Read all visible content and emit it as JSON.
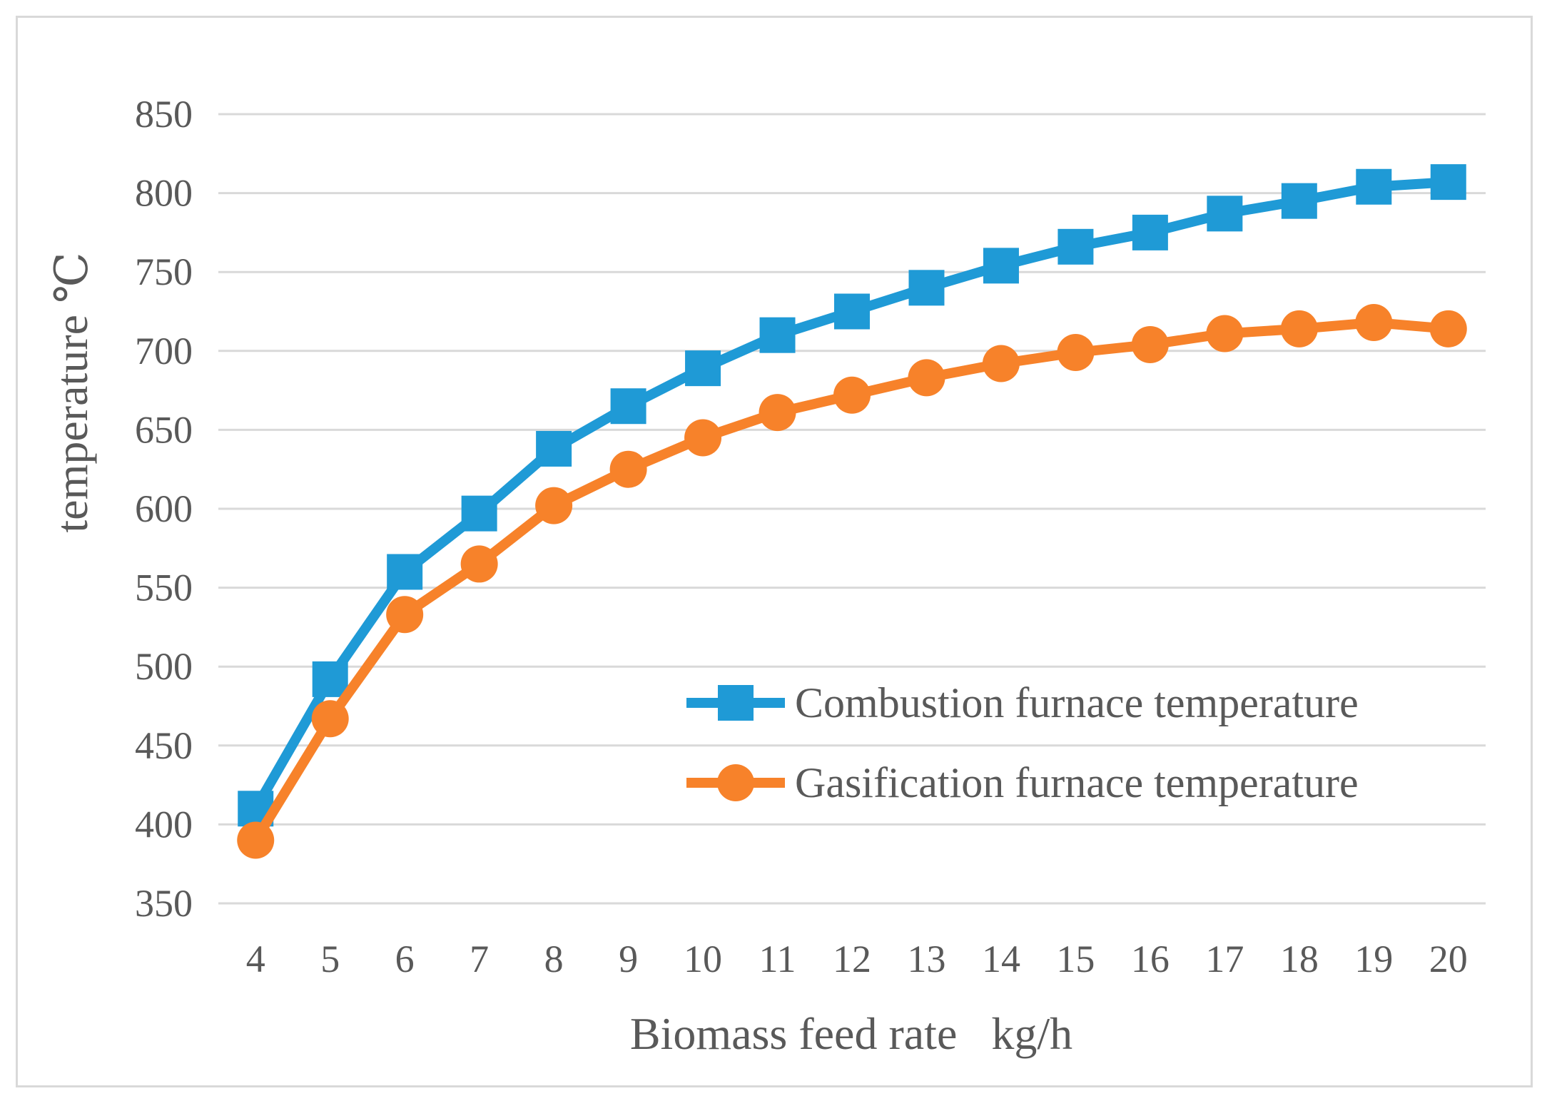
{
  "chart_data": {
    "type": "line",
    "title": "",
    "xlabel": "Biomass feed rate   kg/h",
    "ylabel": "temperature  ℃",
    "ylim": [
      350,
      850
    ],
    "yticks": [
      350,
      400,
      450,
      500,
      550,
      600,
      650,
      700,
      750,
      800,
      850
    ],
    "grid": true,
    "legend_position": "right-middle",
    "x": [
      4,
      5,
      6,
      7,
      8,
      9,
      10,
      11,
      12,
      13,
      14,
      15,
      16,
      17,
      18,
      19,
      20
    ],
    "series": [
      {
        "name": "Combustion furnace temperature",
        "color": "#1f9ad6",
        "marker": "square",
        "values": [
          410,
          492,
          560,
          597,
          638,
          665,
          689,
          710,
          725,
          740,
          754,
          766,
          775,
          787,
          795,
          804,
          807
        ]
      },
      {
        "name": "Gasification furnace temperature",
        "color": "#f7822a",
        "marker": "circle",
        "values": [
          390,
          467,
          533,
          565,
          602,
          625,
          645,
          661,
          672,
          683,
          692,
          699,
          704,
          711,
          714,
          718,
          714
        ]
      }
    ]
  }
}
